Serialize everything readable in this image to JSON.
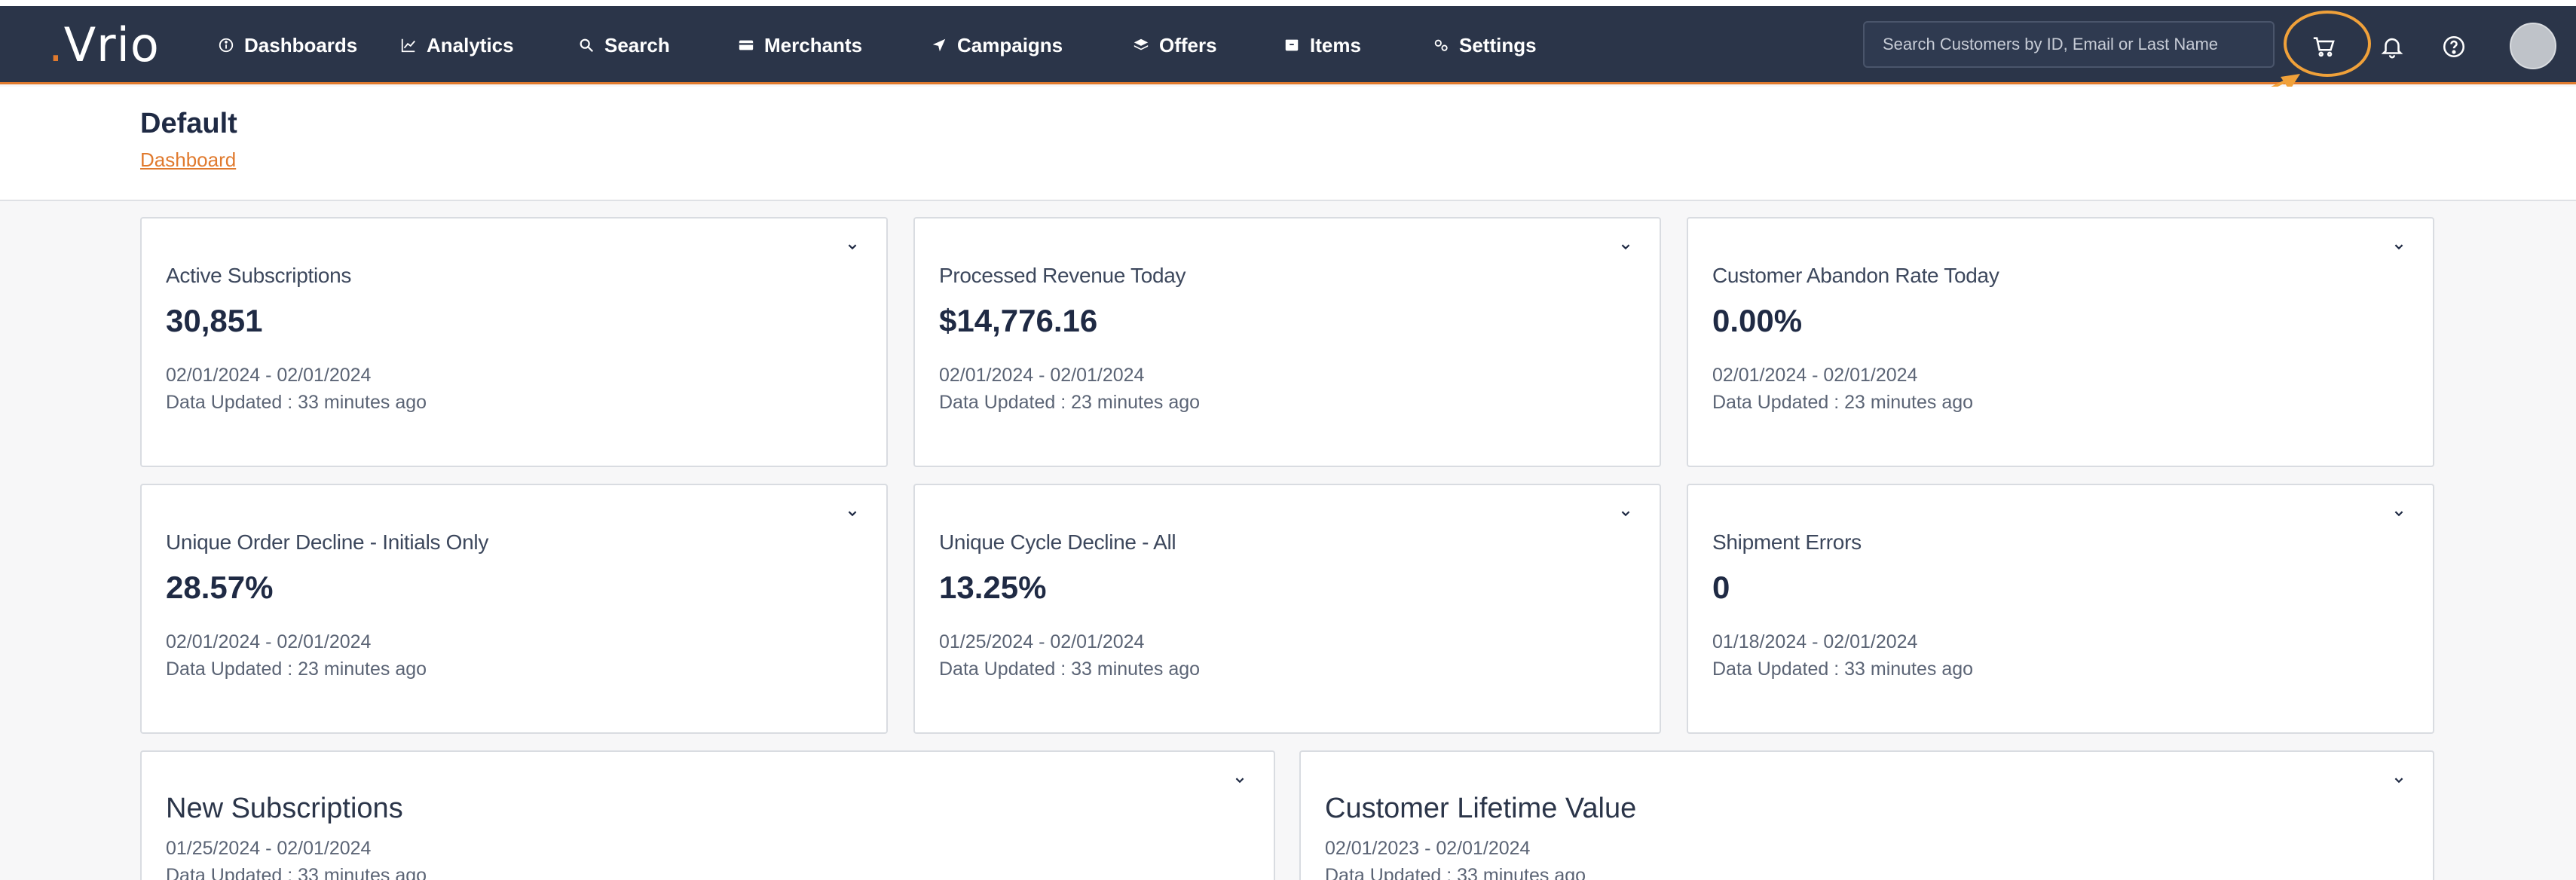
{
  "brand": {
    "logo_text": "Vrio"
  },
  "nav": {
    "items": [
      {
        "label": "Dashboards",
        "icon": "info-icon"
      },
      {
        "label": "Analytics",
        "icon": "chart-line-icon"
      },
      {
        "label": "Search",
        "icon": "search-icon"
      },
      {
        "label": "Merchants",
        "icon": "credit-card-icon"
      },
      {
        "label": "Campaigns",
        "icon": "send-icon"
      },
      {
        "label": "Offers",
        "icon": "layers-icon"
      },
      {
        "label": "Items",
        "icon": "box-icon"
      },
      {
        "label": "Settings",
        "icon": "gears-icon"
      }
    ],
    "search_placeholder": "Search Customers by ID, Email or Last Name"
  },
  "page": {
    "title": "Default",
    "breadcrumb": "Dashboard"
  },
  "cards": [
    {
      "label": "Active Subscriptions",
      "value": "30,851",
      "range": "02/01/2024 - 02/01/2024",
      "updated": "Data Updated : 33 minutes ago"
    },
    {
      "label": "Processed Revenue Today",
      "value": "$14,776.16",
      "range": "02/01/2024 - 02/01/2024",
      "updated": "Data Updated : 23 minutes ago"
    },
    {
      "label": "Customer Abandon Rate Today",
      "value": "0.00%",
      "range": "02/01/2024 - 02/01/2024",
      "updated": "Data Updated : 23 minutes ago"
    },
    {
      "label": "Unique Order Decline - Initials Only",
      "value": "28.57%",
      "range": "02/01/2024 - 02/01/2024",
      "updated": "Data Updated : 23 minutes ago"
    },
    {
      "label": "Unique Cycle Decline - All",
      "value": "13.25%",
      "range": "01/25/2024 - 02/01/2024",
      "updated": "Data Updated : 33 minutes ago"
    },
    {
      "label": "Shipment Errors",
      "value": "0",
      "range": "01/18/2024 - 02/01/2024",
      "updated": "Data Updated : 33 minutes ago"
    }
  ],
  "wide_cards": [
    {
      "label": "New Subscriptions",
      "range": "01/25/2024 - 02/01/2024",
      "updated": "Data Updated : 33 minutes ago"
    },
    {
      "label": "Customer Lifetime Value",
      "range": "02/01/2023 - 02/01/2024",
      "updated": "Data Updated : 33 minutes ago"
    }
  ],
  "colors": {
    "navbar": "#2b3549",
    "accent": "#e07a2e",
    "annotation": "#f0a13a"
  }
}
